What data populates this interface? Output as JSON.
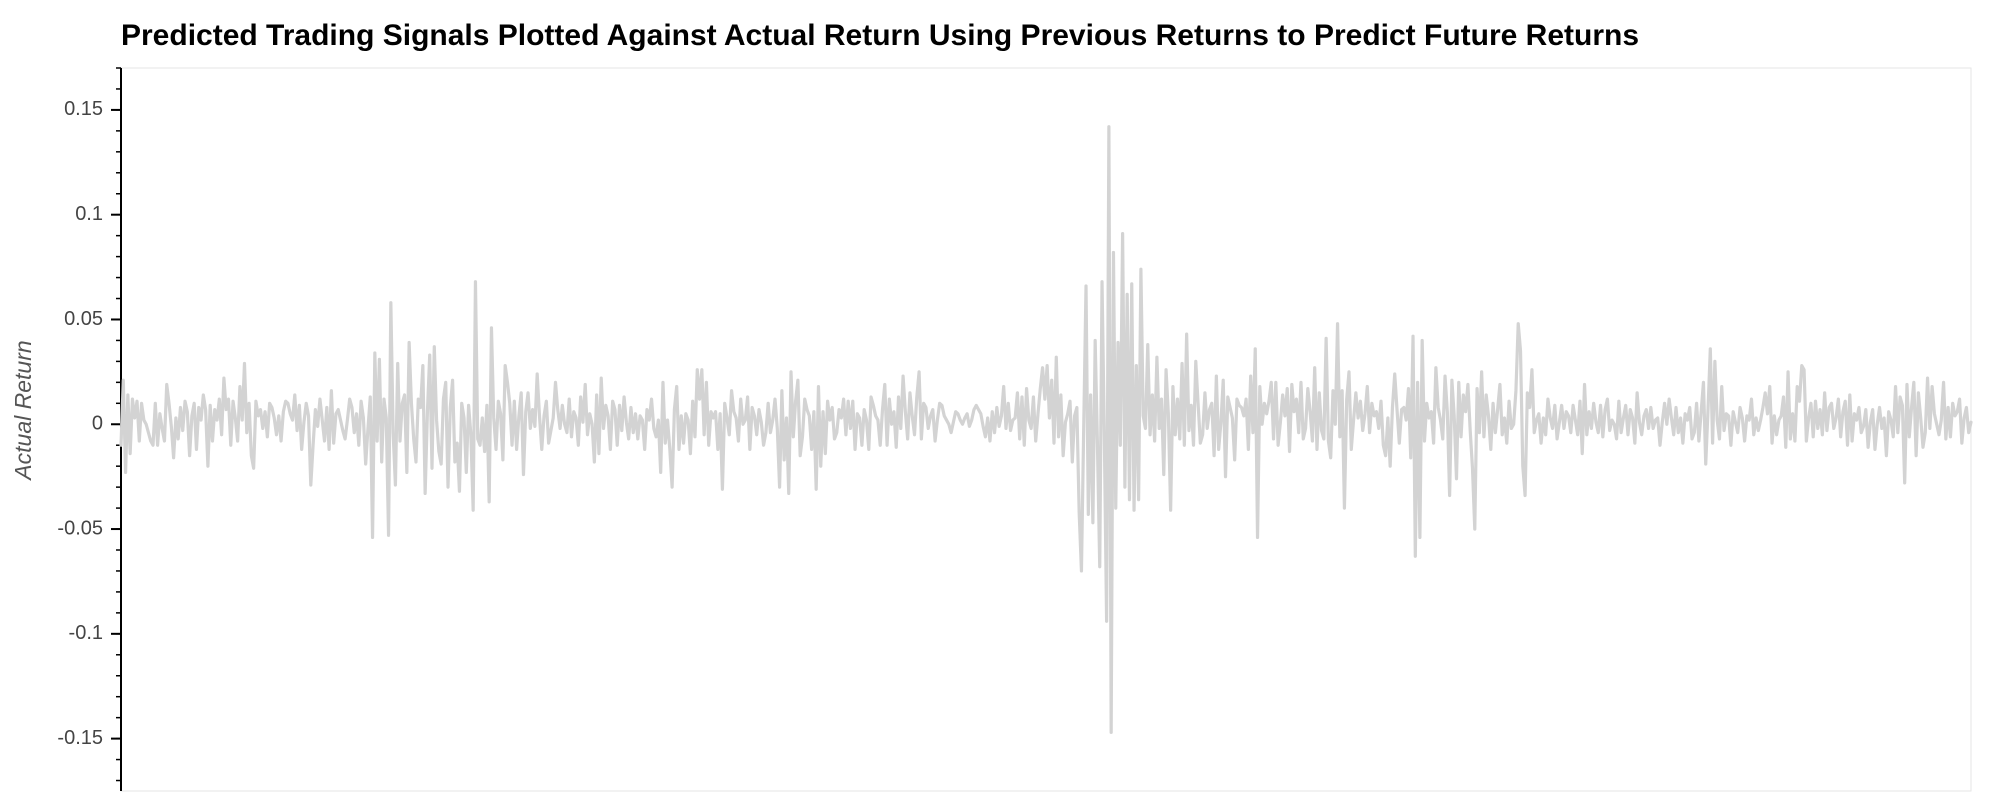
{
  "chart_data": {
    "type": "line",
    "title": "Predicted Trading Signals Plotted Against Actual Return Using Previous Returns to Predict Future Returns",
    "ylabel": "Actual Return",
    "xlabel": "",
    "ylim": [
      -0.175,
      0.17
    ],
    "y_ticks": [
      {
        "value": 0.15,
        "label": "0.15"
      },
      {
        "value": 0.1,
        "label": "0.1"
      },
      {
        "value": 0.05,
        "label": "0.05"
      },
      {
        "value": 0,
        "label": "0"
      },
      {
        "value": -0.05,
        "label": "-0.05"
      },
      {
        "value": -0.1,
        "label": "-0.1"
      },
      {
        "value": -0.15,
        "label": "-0.15"
      }
    ],
    "grid": false,
    "series": [
      {
        "color": "#d3d3d3",
        "values": [
          -0.01,
          0.021,
          -0.023,
          0.014,
          -0.014,
          0.012,
          0.003,
          0.011,
          -0.008,
          0.01,
          0.002,
          0.0,
          -0.004,
          -0.008,
          -0.01,
          0.01,
          -0.01,
          0.005,
          -0.002,
          -0.008,
          0.019,
          0.01,
          -0.001,
          -0.016,
          0.003,
          -0.007,
          0.008,
          -0.003,
          0.011,
          0.006,
          -0.015,
          0.004,
          0.01,
          -0.012,
          0.008,
          0.002,
          0.014,
          0.007,
          -0.02,
          0.009,
          -0.008,
          0.007,
          0.002,
          0.012,
          -0.005,
          0.022,
          0.007,
          0.012,
          -0.01,
          0.011,
          0.003,
          -0.008,
          0.018,
          0.002,
          0.029,
          -0.004,
          0.01,
          -0.015,
          -0.021,
          0.011,
          0.004,
          0.007,
          -0.002,
          0.006,
          -0.006,
          0.01,
          0.008,
          0.003,
          -0.005,
          0.004,
          -0.008,
          0.006,
          0.011,
          0.01,
          0.005,
          0.002,
          0.014,
          -0.003,
          0.009,
          -0.012,
          0.001,
          0.01,
          0.004,
          -0.029,
          -0.01,
          0.007,
          -0.001,
          0.012,
          0.002,
          -0.008,
          0.008,
          -0.012,
          0.016,
          -0.009,
          0.005,
          0.007,
          0.002,
          -0.003,
          -0.007,
          0.002,
          0.012,
          0.008,
          -0.004,
          0.005,
          -0.01,
          0.011,
          0.003,
          -0.019,
          -0.002,
          0.013,
          -0.054,
          0.034,
          -0.008,
          0.031,
          -0.018,
          0.012,
          0.003,
          -0.053,
          0.058,
          -0.004,
          -0.029,
          0.029,
          -0.008,
          0.01,
          0.014,
          -0.023,
          0.039,
          0.01,
          -0.007,
          -0.018,
          0.012,
          0.008,
          0.028,
          -0.033,
          0.006,
          0.033,
          -0.021,
          0.037,
          0.002,
          -0.013,
          -0.019,
          0.012,
          0.02,
          -0.03,
          0.008,
          0.021,
          -0.018,
          -0.009,
          -0.032,
          0.01,
          0.003,
          -0.023,
          0.009,
          -0.005,
          -0.041,
          0.068,
          -0.007,
          -0.01,
          0.003,
          -0.013,
          0.009,
          -0.037,
          0.046,
          0.003,
          -0.012,
          0.011,
          0.005,
          -0.017,
          0.028,
          0.02,
          0.01,
          -0.01,
          0.011,
          -0.012,
          0.004,
          0.015,
          -0.024,
          0.006,
          0.015,
          -0.002,
          0.007,
          -0.001,
          0.024,
          0.004,
          -0.012,
          0.004,
          0.011,
          -0.009,
          -0.003,
          0.003,
          0.02,
          0.007,
          -0.002,
          0.009,
          0.0,
          -0.004,
          0.012,
          -0.006,
          0.006,
          0.003,
          -0.01,
          0.013,
          0.001,
          0.019,
          -0.005,
          0.005,
          0.0,
          -0.018,
          0.014,
          -0.014,
          0.022,
          -0.002,
          0.009,
          0.004,
          -0.012,
          0.011,
          0.007,
          -0.01,
          0.009,
          -0.003,
          0.013,
          0.001,
          -0.007,
          0.008,
          -0.004,
          0.005,
          -0.007,
          0.004,
          0.002,
          -0.012,
          0.007,
          0.002,
          0.012,
          -0.002,
          -0.006,
          0.002,
          -0.023,
          0.02,
          -0.009,
          0.002,
          -0.012,
          -0.03,
          0.007,
          0.018,
          -0.012,
          0.004,
          -0.009,
          0.005,
          0.002,
          -0.014,
          0.011,
          -0.006,
          0.026,
          0.012,
          0.026,
          -0.005,
          0.02,
          -0.01,
          0.006,
          0.003,
          0.006,
          -0.012,
          0.005,
          -0.031,
          0.01,
          0.003,
          -0.005,
          0.016,
          0.006,
          0.003,
          -0.008,
          0.012,
          0.0,
          0.002,
          0.013,
          -0.012,
          0.008,
          0.004,
          -0.005,
          0.007,
          0.001,
          -0.01,
          -0.004,
          0.01,
          -0.004,
          0.002,
          0.012,
          -0.002,
          -0.03,
          0.016,
          -0.017,
          0.003,
          -0.033,
          0.025,
          -0.006,
          0.011,
          0.021,
          -0.015,
          -0.006,
          0.012,
          0.007,
          0.004,
          -0.012,
          0.006,
          -0.031,
          0.018,
          -0.02,
          0.006,
          -0.014,
          0.011,
          0.002,
          0.008,
          -0.007,
          -0.004,
          0.007,
          0.003,
          0.012,
          -0.005,
          0.011,
          -0.002,
          0.011,
          -0.012,
          0.005,
          0.003,
          -0.01,
          0.007,
          0.002,
          -0.012,
          0.013,
          0.009,
          0.004,
          0.002,
          -0.01,
          0.007,
          0.019,
          -0.01,
          0.012,
          0.0,
          0.006,
          -0.011,
          0.013,
          -0.002,
          0.023,
          0.006,
          -0.007,
          0.015,
          0.004,
          -0.005,
          0.013,
          0.025,
          -0.007,
          0.01,
          0.008,
          -0.002,
          0.004,
          0.007,
          -0.008,
          0.002,
          0.01,
          0.009,
          0.004,
          0.002,
          0.0,
          -0.004,
          0.001,
          0.006,
          0.005,
          0.002,
          0.0,
          0.003,
          0.005,
          -0.001,
          0.002,
          0.007,
          0.009,
          0.007,
          0.005,
          -0.001,
          -0.006,
          0.003,
          -0.008,
          0.006,
          -0.004,
          0.008,
          -0.001,
          0.004,
          0.018,
          -0.002,
          0.01,
          -0.003,
          0.002,
          0.003,
          0.015,
          -0.007,
          0.013,
          -0.01,
          0.017,
          0.002,
          -0.002,
          0.013,
          -0.008,
          0.005,
          0.017,
          0.027,
          0.012,
          0.028,
          0.003,
          0.021,
          -0.009,
          0.032,
          -0.006,
          0.014,
          -0.015,
          0.001,
          0.005,
          0.011,
          -0.018,
          0.004,
          0.008,
          -0.042,
          -0.07,
          -0.001,
          0.066,
          -0.043,
          0.014,
          -0.047,
          0.04,
          -0.01,
          -0.068,
          0.068,
          -0.005,
          -0.094,
          0.142,
          -0.147,
          0.082,
          -0.04,
          0.039,
          -0.01,
          0.091,
          -0.03,
          0.062,
          -0.036,
          0.067,
          -0.041,
          0.028,
          -0.036,
          0.074,
          0.004,
          -0.002,
          0.038,
          -0.005,
          0.014,
          -0.008,
          0.032,
          -0.002,
          0.012,
          -0.024,
          0.026,
          0.005,
          -0.041,
          0.018,
          -0.005,
          0.012,
          -0.007,
          0.029,
          -0.01,
          0.043,
          -0.003,
          0.009,
          -0.01,
          0.03,
          0.01,
          -0.009,
          -0.005,
          0.015,
          -0.002,
          0.007,
          0.01,
          -0.015,
          0.023,
          -0.012,
          0.001,
          0.021,
          -0.025,
          0.013,
          0.008,
          0.003,
          -0.017,
          0.012,
          0.009,
          0.008,
          0.004,
          0.012,
          -0.012,
          0.023,
          -0.004,
          0.036,
          -0.054,
          0.018,
          0.0,
          0.01,
          0.005,
          0.011,
          0.02,
          -0.007,
          0.02,
          -0.01,
          0.001,
          0.014,
          0.004,
          0.017,
          -0.013,
          0.019,
          0.006,
          0.012,
          -0.004,
          0.02,
          -0.007,
          -0.002,
          0.017,
          0.006,
          -0.008,
          0.027,
          -0.012,
          0.015,
          -0.003,
          -0.007,
          0.041,
          -0.008,
          -0.016,
          0.016,
          0.0,
          0.048,
          -0.006,
          0.016,
          -0.04,
          0.012,
          0.025,
          -0.012,
          0.002,
          0.015,
          0.003,
          0.011,
          -0.003,
          0.005,
          0.018,
          -0.004,
          0.01,
          0.004,
          0.006,
          -0.002,
          0.011,
          -0.01,
          -0.015,
          0.003,
          -0.02,
          0.008,
          0.024,
          0.007,
          -0.009,
          0.007,
          0.008,
          0.002,
          0.017,
          -0.016,
          0.042,
          -0.063,
          0.02,
          -0.054,
          0.04,
          -0.008,
          0.01,
          0.003,
          0.006,
          -0.009,
          0.027,
          0.008,
          0.002,
          -0.007,
          0.023,
          0.006,
          -0.034,
          0.021,
          0.004,
          -0.026,
          0.02,
          -0.006,
          0.014,
          0.006,
          0.019,
          -0.003,
          -0.021,
          -0.05,
          0.017,
          -0.004,
          0.025,
          -0.006,
          0.014,
          0.004,
          -0.012,
          0.01,
          -0.004,
          0.007,
          0.019,
          -0.005,
          0.003,
          -0.009,
          0.011,
          -0.002,
          0.0,
          0.016,
          0.048,
          0.035,
          -0.02,
          -0.034,
          0.015,
          0.008,
          0.026,
          -0.004,
          0.002,
          0.005,
          -0.009,
          0.003,
          -0.005,
          0.012,
          0.003,
          -0.002,
          0.009,
          -0.007,
          0.001,
          0.009,
          -0.002,
          0.006,
          0.004,
          -0.004,
          0.009,
          0.002,
          -0.005,
          0.011,
          -0.014,
          0.019,
          -0.005,
          0.006,
          -0.002,
          0.01,
          0.001,
          -0.004,
          0.009,
          -0.006,
          0.007,
          0.012,
          -0.003,
          0.002,
          0.0,
          -0.007,
          0.011,
          -0.004,
          0.003,
          0.009,
          -0.005,
          0.007,
          0.003,
          -0.009,
          0.015,
          0.001,
          -0.005,
          0.004,
          0.007,
          -0.002,
          0.008,
          -0.002,
          0.002,
          0.003,
          -0.01,
          0.001,
          0.01,
          0.0,
          0.012,
          0.003,
          -0.005,
          0.008,
          -0.004,
          0.003,
          -0.009,
          0.005,
          0.002,
          0.008,
          -0.007,
          -0.004,
          0.01,
          -0.008,
          0.006,
          0.02,
          -0.019,
          0.007,
          0.036,
          -0.009,
          0.03,
          0.002,
          -0.007,
          0.018,
          -0.003,
          0.005,
          0.004,
          -0.01,
          0.006,
          0.001,
          -0.004,
          0.008,
          0.003,
          -0.008,
          0.004,
          0.002,
          0.012,
          -0.005,
          0.003,
          -0.003,
          0.002,
          0.008,
          0.015,
          0.005,
          0.018,
          -0.009,
          0.004,
          -0.005,
          0.002,
          0.004,
          0.013,
          -0.011,
          0.025,
          -0.007,
          0.005,
          -0.008,
          0.018,
          0.011,
          0.028,
          0.026,
          -0.008,
          0.003,
          0.01,
          -0.006,
          0.011,
          -0.002,
          0.007,
          -0.005,
          0.015,
          -0.003,
          0.008,
          0.01,
          -0.002,
          0.003,
          0.012,
          -0.006,
          0.006,
          0.011,
          -0.01,
          0.014,
          -0.008,
          0.005,
          0.002,
          0.008,
          -0.004,
          -0.001,
          0.007,
          -0.011,
          0.001,
          0.007,
          -0.012,
          0.0,
          0.008,
          -0.002,
          0.003,
          -0.015,
          0.006,
          0.002,
          -0.006,
          0.018,
          -0.004,
          0.013,
          0.009,
          -0.028,
          0.019,
          -0.006,
          0.008,
          0.02,
          -0.015,
          0.015,
          0.003,
          -0.011,
          -0.004,
          0.022,
          -0.002,
          0.018,
          0.005,
          0.0,
          -0.005,
          0.002,
          0.02,
          -0.007,
          0.008,
          -0.006,
          0.01,
          0.004,
          0.006,
          0.012,
          -0.009,
          0.003,
          0.008,
          -0.004,
          0.001
        ]
      }
    ]
  }
}
